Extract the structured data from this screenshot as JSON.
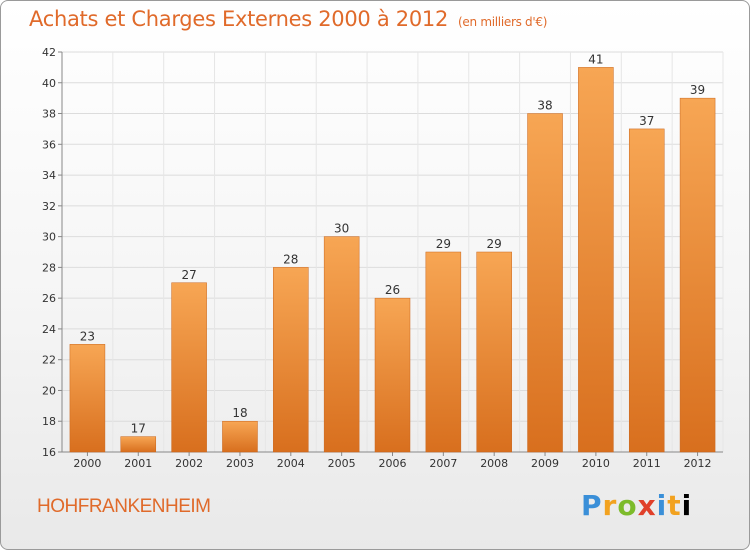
{
  "header": {
    "title": "Achats et Charges Externes 2000 à 2012",
    "unit": "(en milliers d'€)"
  },
  "footer": {
    "location": "HOHFRANKENHEIM",
    "brand": "Proxiti"
  },
  "colors": {
    "accent": "#e06a2a",
    "bar_top": "#f7a654",
    "bar_bottom": "#d86f1e"
  },
  "chart_data": {
    "type": "bar",
    "title": "Achats et Charges Externes 2000 à 2012",
    "subtitle": "(en milliers d'€)",
    "xlabel": "",
    "ylabel": "",
    "categories": [
      "2000",
      "2001",
      "2002",
      "2003",
      "2004",
      "2005",
      "2006",
      "2007",
      "2008",
      "2009",
      "2010",
      "2011",
      "2012"
    ],
    "values": [
      23,
      17,
      27,
      18,
      28,
      30,
      26,
      29,
      29,
      38,
      41,
      37,
      39
    ],
    "ylim": [
      16,
      42
    ],
    "yticks": [
      16,
      18,
      20,
      22,
      24,
      26,
      28,
      30,
      32,
      34,
      36,
      38,
      40,
      42
    ],
    "grid": true,
    "legend": "none"
  }
}
